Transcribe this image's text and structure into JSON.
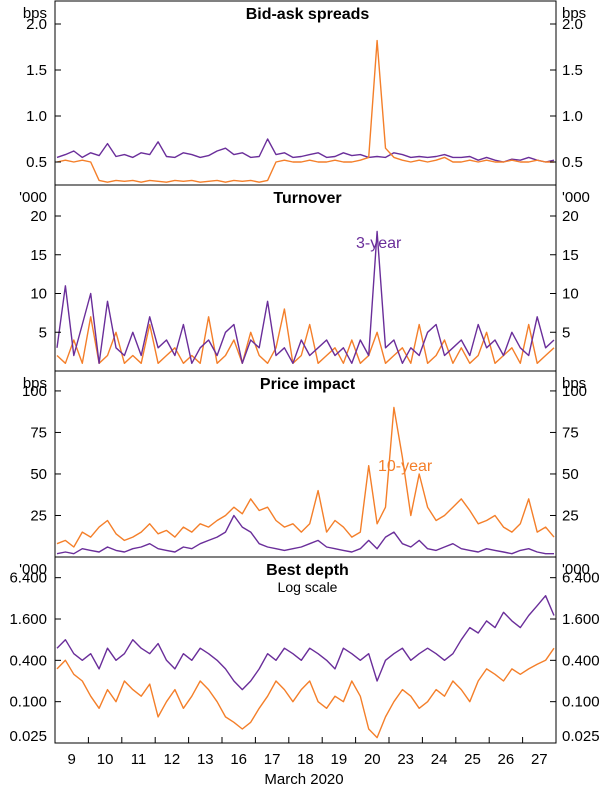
{
  "chart_data": {
    "type": "line",
    "x_axis": {
      "title": "March 2020",
      "tick_labels": [
        "9",
        "10",
        "11",
        "12",
        "13",
        "16",
        "17",
        "18",
        "19",
        "20",
        "23",
        "24",
        "25",
        "26",
        "27"
      ]
    },
    "series_meta": [
      {
        "name": "3-year",
        "color": "#6a2e9a"
      },
      {
        "name": "10-year",
        "color": "#f47f2a"
      }
    ],
    "panels": [
      {
        "title": "Bid-ask spreads",
        "subtitle": "",
        "unit": "bps",
        "scale": "linear",
        "ylim": [
          0.25,
          2.25
        ],
        "ticks": [
          {
            "value": 0.5,
            "label": "0.5"
          },
          {
            "value": 1.0,
            "label": "1.0"
          },
          {
            "value": 1.5,
            "label": "1.5"
          },
          {
            "value": 2.0,
            "label": "2.0"
          }
        ],
        "series": [
          {
            "name": "3-year",
            "label_shown": false,
            "color": "#6a2e9a",
            "values": [
              0.55,
              0.58,
              0.62,
              0.55,
              0.6,
              0.57,
              0.7,
              0.56,
              0.58,
              0.55,
              0.6,
              0.58,
              0.72,
              0.56,
              0.55,
              0.6,
              0.58,
              0.55,
              0.57,
              0.62,
              0.65,
              0.58,
              0.6,
              0.55,
              0.56,
              0.75,
              0.58,
              0.6,
              0.55,
              0.56,
              0.58,
              0.6,
              0.55,
              0.56,
              0.6,
              0.57,
              0.58,
              0.55,
              0.56,
              0.55,
              0.6,
              0.58,
              0.55,
              0.56,
              0.55,
              0.56,
              0.58,
              0.55,
              0.55,
              0.56,
              0.52,
              0.55,
              0.52,
              0.5,
              0.53,
              0.52,
              0.55,
              0.52,
              0.5,
              0.52
            ]
          },
          {
            "name": "10-year",
            "label_shown": false,
            "color": "#f47f2a",
            "values": [
              0.5,
              0.52,
              0.5,
              0.52,
              0.5,
              0.3,
              0.28,
              0.3,
              0.29,
              0.3,
              0.28,
              0.3,
              0.29,
              0.28,
              0.3,
              0.29,
              0.3,
              0.28,
              0.29,
              0.3,
              0.28,
              0.3,
              0.29,
              0.3,
              0.28,
              0.3,
              0.5,
              0.52,
              0.5,
              0.5,
              0.52,
              0.5,
              0.5,
              0.52,
              0.5,
              0.5,
              0.52,
              0.55,
              1.82,
              0.65,
              0.55,
              0.52,
              0.5,
              0.52,
              0.5,
              0.52,
              0.55,
              0.5,
              0.5,
              0.52,
              0.5,
              0.52,
              0.5,
              0.5,
              0.52,
              0.5,
              0.5,
              0.52,
              0.5,
              0.5
            ]
          }
        ]
      },
      {
        "title": "Turnover",
        "subtitle": "",
        "unit": "'000",
        "scale": "linear",
        "ylim": [
          0,
          24
        ],
        "ticks": [
          {
            "value": 5,
            "label": "5"
          },
          {
            "value": 10,
            "label": "10"
          },
          {
            "value": 15,
            "label": "15"
          },
          {
            "value": 20,
            "label": "20"
          }
        ],
        "series": [
          {
            "name": "10-year",
            "label_shown": false,
            "color": "#f47f2a",
            "values": [
              2,
              1,
              4,
              1,
              7,
              1,
              2,
              5,
              1,
              2,
              1,
              6,
              1,
              2,
              3,
              1,
              2,
              1,
              7,
              1,
              2,
              4,
              1,
              5,
              2,
              1,
              3,
              8,
              1,
              2,
              6,
              1,
              2,
              3,
              1,
              4,
              1,
              2,
              5,
              1,
              2,
              3,
              1,
              6,
              1,
              2,
              4,
              1,
              3,
              1,
              2,
              5,
              1,
              2,
              3,
              1,
              6,
              1,
              2,
              3
            ]
          },
          {
            "name": "3-year",
            "label_shown": true,
            "color": "#6a2e9a",
            "values": [
              3,
              11,
              2,
              6,
              10,
              1,
              9,
              3,
              2,
              5,
              2,
              7,
              3,
              4,
              2,
              6,
              1,
              3,
              4,
              2,
              5,
              6,
              1,
              4,
              3,
              9,
              2,
              3,
              1,
              4,
              2,
              3,
              4,
              2,
              3,
              1,
              4,
              2,
              18,
              3,
              4,
              1,
              3,
              2,
              5,
              6,
              2,
              3,
              4,
              2,
              6,
              3,
              4,
              2,
              5,
              3,
              2,
              7,
              3,
              4
            ]
          }
        ]
      },
      {
        "title": "Price impact",
        "subtitle": "",
        "unit": "bps",
        "scale": "linear",
        "ylim": [
          0,
          112
        ],
        "ticks": [
          {
            "value": 25,
            "label": "25"
          },
          {
            "value": 50,
            "label": "50"
          },
          {
            "value": 75,
            "label": "75"
          },
          {
            "value": 100,
            "label": "100"
          }
        ],
        "series": [
          {
            "name": "10-year",
            "label_shown": true,
            "color": "#f47f2a",
            "values": [
              8,
              10,
              6,
              15,
              12,
              18,
              22,
              14,
              10,
              12,
              15,
              20,
              14,
              16,
              12,
              18,
              15,
              20,
              18,
              22,
              25,
              30,
              26,
              35,
              28,
              30,
              22,
              18,
              20,
              15,
              20,
              40,
              15,
              22,
              18,
              12,
              15,
              55,
              20,
              30,
              90,
              60,
              25,
              50,
              30,
              22,
              25,
              30,
              35,
              28,
              20,
              22,
              25,
              18,
              15,
              20,
              35,
              15,
              18,
              12
            ]
          },
          {
            "name": "3-year",
            "label_shown": false,
            "color": "#6a2e9a",
            "values": [
              2,
              3,
              2,
              5,
              4,
              3,
              6,
              4,
              3,
              5,
              6,
              8,
              5,
              4,
              3,
              6,
              5,
              8,
              10,
              12,
              15,
              25,
              18,
              15,
              8,
              6,
              5,
              4,
              5,
              6,
              8,
              10,
              6,
              5,
              4,
              3,
              5,
              10,
              5,
              12,
              15,
              8,
              6,
              10,
              5,
              4,
              6,
              8,
              5,
              4,
              3,
              5,
              4,
              3,
              2,
              4,
              5,
              3,
              2,
              2
            ]
          }
        ]
      },
      {
        "title": "Best depth",
        "subtitle": "Log scale",
        "unit": "'000",
        "scale": "log",
        "ylim": [
          0.025,
          12.8
        ],
        "ticks": [
          {
            "value": 0.025,
            "label": "0.025"
          },
          {
            "value": 0.1,
            "label": "0.100"
          },
          {
            "value": 0.4,
            "label": "0.400"
          },
          {
            "value": 1.6,
            "label": "1.600"
          },
          {
            "value": 6.4,
            "label": "6.400"
          }
        ],
        "series": [
          {
            "name": "10-year",
            "label_shown": false,
            "color": "#f47f2a",
            "values": [
              0.3,
              0.4,
              0.25,
              0.2,
              0.12,
              0.08,
              0.15,
              0.1,
              0.2,
              0.15,
              0.12,
              0.18,
              0.06,
              0.1,
              0.15,
              0.08,
              0.12,
              0.2,
              0.15,
              0.1,
              0.06,
              0.05,
              0.04,
              0.05,
              0.08,
              0.12,
              0.2,
              0.15,
              0.1,
              0.15,
              0.2,
              0.1,
              0.08,
              0.12,
              0.1,
              0.2,
              0.12,
              0.04,
              0.03,
              0.06,
              0.1,
              0.15,
              0.12,
              0.08,
              0.1,
              0.15,
              0.12,
              0.2,
              0.15,
              0.1,
              0.2,
              0.3,
              0.25,
              0.2,
              0.3,
              0.25,
              0.3,
              0.35,
              0.4,
              0.6
            ]
          },
          {
            "name": "3-year",
            "label_shown": false,
            "color": "#6a2e9a",
            "values": [
              0.6,
              0.8,
              0.5,
              0.4,
              0.5,
              0.3,
              0.6,
              0.4,
              0.5,
              0.8,
              0.6,
              0.5,
              0.7,
              0.4,
              0.3,
              0.5,
              0.4,
              0.6,
              0.5,
              0.4,
              0.3,
              0.2,
              0.15,
              0.2,
              0.3,
              0.5,
              0.4,
              0.6,
              0.5,
              0.4,
              0.6,
              0.5,
              0.4,
              0.3,
              0.6,
              0.5,
              0.4,
              0.5,
              0.2,
              0.4,
              0.5,
              0.6,
              0.4,
              0.5,
              0.6,
              0.5,
              0.4,
              0.5,
              0.8,
              1.2,
              1.0,
              1.5,
              1.2,
              2.0,
              1.5,
              1.2,
              1.8,
              2.5,
              3.5,
              1.8
            ]
          }
        ]
      }
    ]
  }
}
